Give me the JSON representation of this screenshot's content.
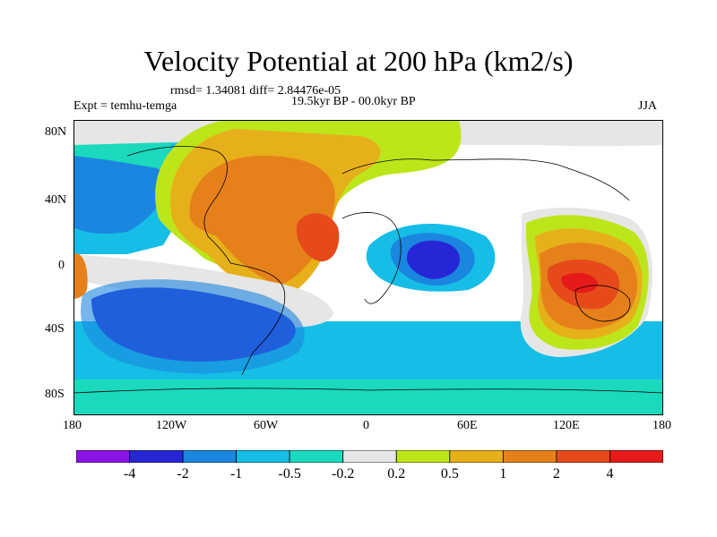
{
  "title": "Velocity Potential at 200 hPa (km2/s)",
  "stats": "rmsd= 1.34081 diff= 2.84476e-05",
  "experiment": "Expt = temhu-temga",
  "period": "19.5kyr BP - 00.0kyr BP",
  "season": "JJA",
  "y_ticks": [
    "80N",
    "40N",
    "0",
    "40S",
    "80S"
  ],
  "x_ticks": [
    "180",
    "120W",
    "60W",
    "0",
    "60E",
    "120E",
    "180"
  ],
  "legend": {
    "labels": [
      "-4",
      "-2",
      "-1",
      "-0.5",
      "-0.2",
      "0.2",
      "0.5",
      "1",
      "2",
      "4"
    ],
    "colors": [
      "#8a14e6",
      "#2626d6",
      "#1a86e0",
      "#16bde6",
      "#1ad9bd",
      "#e6e6e6",
      "#bde61a",
      "#e6b01a",
      "#e6801a",
      "#e64a1a",
      "#e61a1a"
    ]
  }
}
